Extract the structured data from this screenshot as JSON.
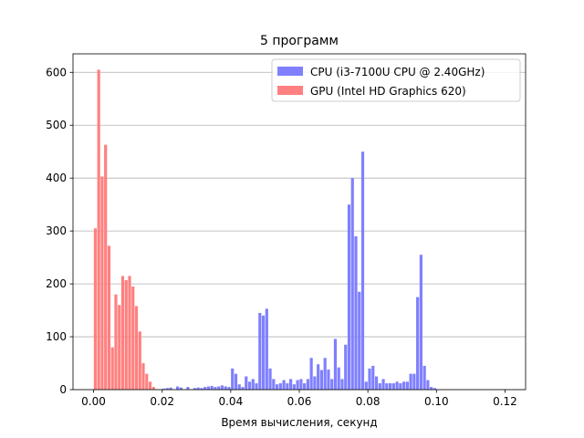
{
  "chart_data": {
    "type": "histogram",
    "title": "5 программ",
    "x_label": "Время вычисления, секунд",
    "bins": [
      0,
      0.001,
      0.002,
      0.003,
      0.004,
      0.005,
      0.006,
      0.007,
      0.008,
      0.009,
      0.01,
      0.011,
      0.012,
      0.013,
      0.014,
      0.015,
      0.016,
      0.017,
      0.018,
      0.019,
      0.02,
      0.021,
      0.022,
      0.023,
      0.024,
      0.025,
      0.026,
      0.027,
      0.028,
      0.029,
      0.03,
      0.031,
      0.032,
      0.033,
      0.034,
      0.035,
      0.036,
      0.037,
      0.038,
      0.039,
      0.04,
      0.041,
      0.042,
      0.043,
      0.044,
      0.045,
      0.046,
      0.047,
      0.048,
      0.049,
      0.05,
      0.051,
      0.052,
      0.053,
      0.054,
      0.055,
      0.056,
      0.057,
      0.058,
      0.059,
      0.06,
      0.061,
      0.062,
      0.063,
      0.064,
      0.065,
      0.066,
      0.067,
      0.068,
      0.069,
      0.07,
      0.071,
      0.072,
      0.073,
      0.074,
      0.075,
      0.076,
      0.077,
      0.078,
      0.079,
      0.08,
      0.081,
      0.082,
      0.083,
      0.084,
      0.085,
      0.086,
      0.087,
      0.088,
      0.089,
      0.09,
      0.091,
      0.092,
      0.093,
      0.094,
      0.095,
      0.096,
      0.097,
      0.098,
      0.099,
      0.1,
      0.101,
      0.102,
      0.103,
      0.104,
      0.105,
      0.106,
      0.107,
      0.108,
      0.109,
      0.11,
      0.111,
      0.112,
      0.113,
      0.114,
      0.115,
      0.116,
      0.117,
      0.118,
      0.119,
      0.12
    ],
    "series": [
      {
        "name": "CPU (i3-7100U CPU @ 2.40GHz)",
        "color": "#8080ff",
        "values": [
          0,
          0,
          0,
          0,
          0,
          0,
          0,
          0,
          0,
          0,
          0,
          0,
          0,
          0,
          0,
          0,
          0,
          0,
          0,
          0,
          2,
          3,
          4,
          0,
          6,
          4,
          0,
          5,
          0,
          3,
          4,
          3,
          5,
          6,
          7,
          5,
          6,
          8,
          6,
          5,
          40,
          30,
          10,
          5,
          25,
          15,
          20,
          12,
          145,
          140,
          153,
          40,
          20,
          10,
          12,
          18,
          12,
          20,
          10,
          18,
          20,
          12,
          20,
          60,
          25,
          48,
          37,
          60,
          38,
          20,
          96,
          42,
          20,
          85,
          350,
          400,
          290,
          185,
          450,
          15,
          40,
          45,
          25,
          12,
          20,
          12,
          12,
          12,
          15,
          12,
          15,
          15,
          30,
          30,
          175,
          255,
          45,
          18,
          5,
          3,
          0,
          0,
          0,
          0,
          0,
          0,
          0,
          0,
          0,
          0,
          0,
          0,
          0,
          0,
          0,
          0,
          0,
          0,
          0,
          0
        ]
      },
      {
        "name": "GPU (Intel HD Graphics 620)",
        "color": "#ff8080",
        "values": [
          305,
          605,
          403,
          463,
          272,
          80,
          180,
          160,
          215,
          207,
          215,
          195,
          158,
          110,
          50,
          30,
          15,
          5,
          0,
          0,
          0,
          0,
          0,
          0,
          0,
          0,
          0,
          0,
          0,
          0,
          0,
          0,
          0,
          0,
          0,
          0,
          0,
          0,
          0,
          0,
          0,
          0,
          0,
          0,
          0,
          0,
          0,
          0,
          0,
          0,
          0,
          0,
          0,
          0,
          0,
          0,
          0,
          0,
          0,
          0,
          0,
          0,
          0,
          0,
          0,
          0,
          0,
          0,
          0,
          0,
          0,
          0,
          0,
          0,
          0,
          0,
          0,
          0,
          0,
          0,
          0,
          0,
          0,
          0,
          0,
          0,
          0,
          0,
          0,
          0,
          0,
          0,
          0,
          0,
          0,
          0,
          0,
          0,
          0,
          0,
          0,
          0,
          0,
          0,
          0,
          0,
          0,
          0,
          0,
          0,
          0,
          0,
          0,
          0,
          0,
          0,
          0,
          0,
          0,
          0
        ]
      }
    ],
    "xlim": [
      -0.006,
      0.126
    ],
    "ylim": [
      0,
      635
    ],
    "xticks": [
      {
        "value": 0,
        "label": "0.00"
      },
      {
        "value": 0.02,
        "label": "0.02"
      },
      {
        "value": 0.04,
        "label": "0.04"
      },
      {
        "value": 0.06,
        "label": "0.06"
      },
      {
        "value": 0.08,
        "label": "0.08"
      },
      {
        "value": 0.1,
        "label": "0.10"
      },
      {
        "value": 0.12,
        "label": "0.12"
      }
    ],
    "yticks": [
      0,
      100,
      200,
      300,
      400,
      500,
      600
    ],
    "grid": "y",
    "legend": "upper right"
  }
}
